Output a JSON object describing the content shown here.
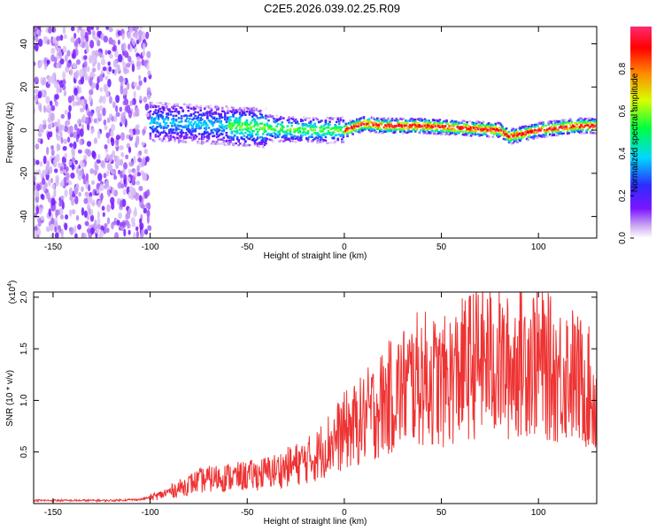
{
  "chart_data": [
    {
      "type": "heatmap",
      "title": "C2E5.2026.039.02.25.R09",
      "xlabel": "Height of straight line (km)",
      "ylabel": "Frequency (Hz)",
      "xlim": [
        -160,
        130
      ],
      "ylim": [
        -50,
        48
      ],
      "xticks": [
        -150,
        -100,
        -50,
        0,
        50,
        100
      ],
      "yticks": [
        -40,
        -20,
        0,
        20,
        40
      ],
      "colorbar": {
        "label": "Normalized spectral amplitude",
        "range": [
          0,
          1
        ],
        "ticks": [
          "0.0",
          "0.2",
          "0.4",
          "0.6",
          "0.8"
        ],
        "colors": [
          "#ffffff",
          "#c9a6f2",
          "#7b14ff",
          "#2c2cff",
          "#00d8ff",
          "#00ff40",
          "#d8ff00",
          "#ff8800",
          "#ff0000",
          "#ff2a72"
        ]
      },
      "ridge_x": [
        -100,
        -80,
        -60,
        -40,
        -20,
        0,
        10,
        20,
        40,
        60,
        80,
        85,
        100,
        120,
        130
      ],
      "ridge_freq": [
        4,
        3,
        2,
        1,
        0,
        0,
        3,
        2,
        2,
        1,
        0,
        -3,
        0,
        2,
        2
      ]
    },
    {
      "type": "line",
      "xlabel": "Height of straight line (km)",
      "ylabel": "SNR (10 * v/v)",
      "scale_label": "(x10",
      "scale_exp": "4",
      "scale_close": ")",
      "xlim": [
        -160,
        130
      ],
      "ylim": [
        0,
        2.05
      ],
      "xticks": [
        -150,
        -100,
        -50,
        0,
        50,
        100
      ],
      "yticks": [
        "0.5",
        "1.0",
        "1.5",
        "2.0"
      ],
      "color": "#ee3333",
      "x": [
        -160,
        -140,
        -120,
        -105,
        -95,
        -85,
        -75,
        -65,
        -55,
        -45,
        -35,
        -25,
        -15,
        -10,
        -5,
        0,
        5,
        10,
        15,
        20,
        25,
        30,
        35,
        40,
        45,
        50,
        55,
        60,
        65,
        70,
        75,
        80,
        85,
        90,
        95,
        100,
        105,
        110,
        115,
        120,
        125,
        130
      ],
      "y": [
        0.03,
        0.03,
        0.03,
        0.04,
        0.08,
        0.15,
        0.22,
        0.25,
        0.26,
        0.28,
        0.32,
        0.38,
        0.45,
        0.55,
        0.62,
        0.7,
        0.75,
        0.82,
        0.9,
        0.98,
        1.05,
        1.12,
        1.18,
        1.22,
        1.2,
        1.15,
        1.22,
        1.28,
        1.35,
        1.4,
        1.38,
        1.35,
        1.3,
        1.4,
        1.42,
        1.38,
        1.32,
        1.25,
        1.3,
        1.2,
        1.15,
        0.95
      ]
    }
  ]
}
